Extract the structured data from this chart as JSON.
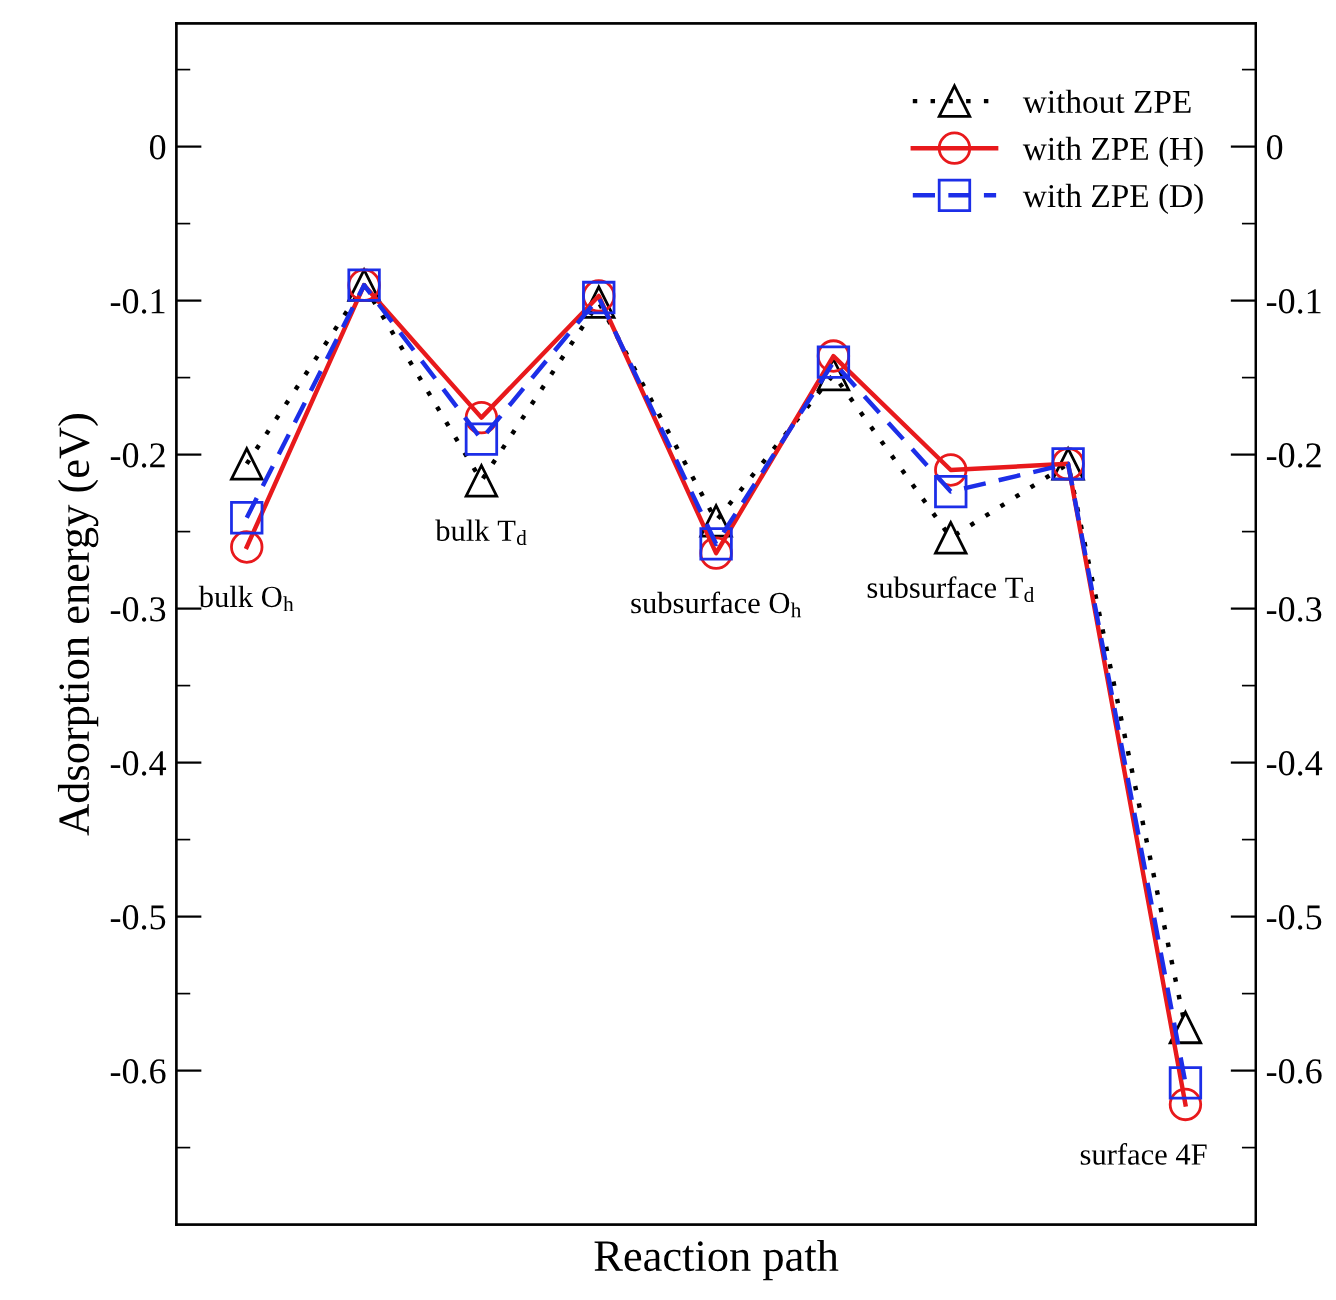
{
  "chart_data": {
    "type": "line",
    "xlabel": "Reaction path",
    "ylabel": "Adsorption energy (eV)",
    "categories": [
      null,
      null,
      null,
      null,
      null,
      null,
      null,
      null,
      null
    ],
    "series": [
      {
        "name": "without ZPE",
        "color": "#000000",
        "marker": "triangle",
        "line_style": "dotted",
        "values": [
          -0.206,
          -0.09,
          -0.217,
          -0.101,
          -0.243,
          -0.148,
          -0.254,
          -0.206,
          -0.572
        ]
      },
      {
        "name": "with ZPE (H)",
        "color": "#e8191c",
        "marker": "circle",
        "line_style": "solid",
        "values": [
          -0.26,
          -0.09,
          -0.176,
          -0.097,
          -0.264,
          -0.136,
          -0.21,
          -0.206,
          -0.622
        ]
      },
      {
        "name": "with ZPE (D)",
        "color": "#1c2ee8",
        "marker": "square",
        "line_style": "dashed",
        "values": [
          -0.241,
          -0.09,
          -0.19,
          -0.098,
          -0.258,
          -0.14,
          -0.224,
          -0.206,
          -0.608
        ]
      }
    ],
    "annotations": [
      "bulk O$_{h}$",
      "bulk T$_{d}$",
      "subsurface O$_{h}$",
      "subsurface T$_{d}$",
      "surface 4F"
    ],
    "ylim": [
      -0.7,
      0.08
    ],
    "yticks": [
      {
        "value": 0.05,
        "label": null
      },
      0,
      {
        "value": -0.05,
        "label": null
      },
      -0.1,
      {
        "value": -0.15,
        "label": null
      },
      -0.2,
      {
        "value": -0.25,
        "label": null
      },
      -0.3,
      {
        "value": -0.35,
        "label": null
      },
      -0.4,
      {
        "value": -0.45,
        "label": null
      },
      -0.5,
      {
        "value": -0.55,
        "label": null
      },
      -0.6,
      {
        "value": -0.65,
        "label": null
      }
    ],
    "y2lim": [
      -0.7,
      0.08
    ],
    "y2ticks": [
      {
        "value": 0.05,
        "label": null
      },
      0,
      {
        "value": -0.05,
        "label": null
      },
      -0.1,
      {
        "value": -0.15,
        "label": null
      },
      -0.2,
      {
        "value": -0.25,
        "label": null
      },
      -0.3,
      {
        "value": -0.35,
        "label": null
      },
      -0.4,
      {
        "value": -0.45,
        "label": null
      },
      -0.5,
      {
        "value": -0.55,
        "label": null
      },
      -0.6,
      {
        "value": -0.65,
        "label": null
      }
    ],
    "grid": false,
    "legend": "top right"
  }
}
